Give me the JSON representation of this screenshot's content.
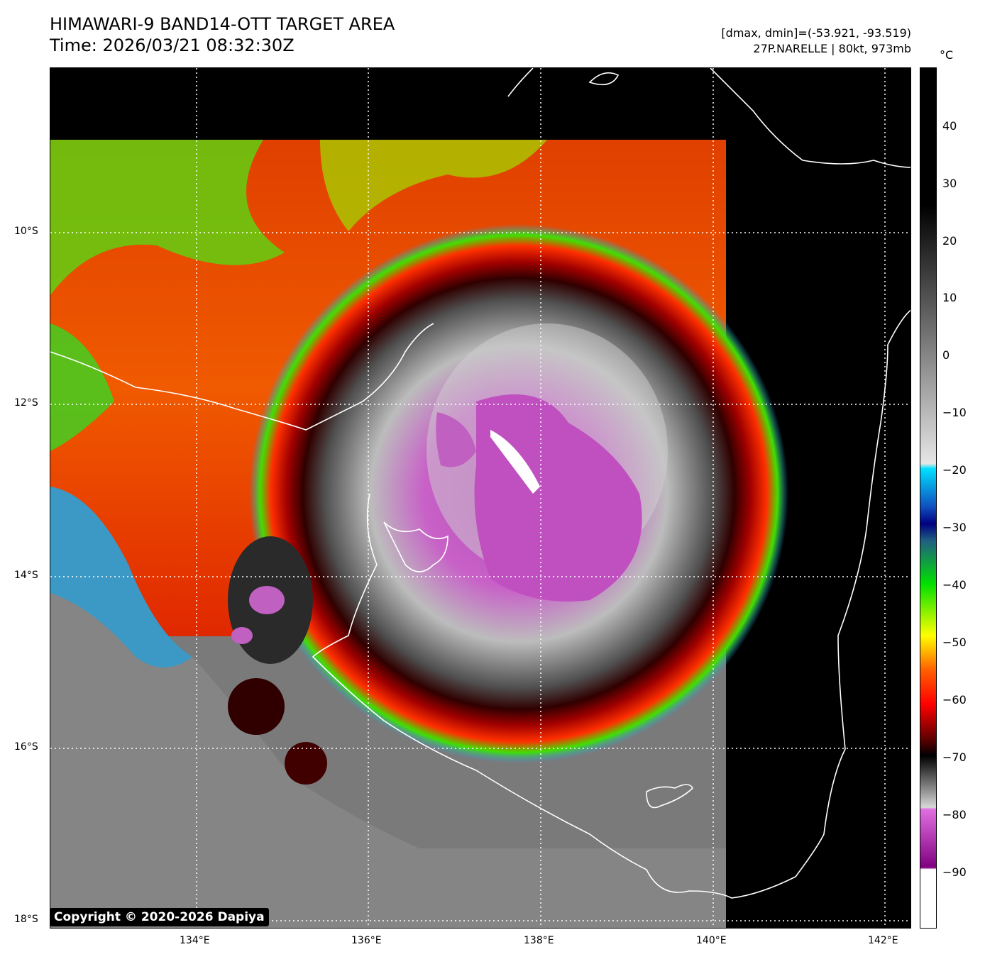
{
  "header": {
    "title_line1": "HIMAWARI-9 BAND14-OTT TARGET AREA",
    "title_line2": "Time: 2026/03/21 08:32:30Z",
    "info_line1": "[dmax, dmin]=(-53.921, -93.519)",
    "info_line2": "27P.NARELLE | 80kt, 973mb"
  },
  "colorbar": {
    "unit": "°C",
    "ticks": [
      "40",
      "30",
      "20",
      "10",
      "0",
      "−10",
      "−20",
      "−30",
      "−40",
      "−50",
      "−60",
      "−70",
      "−80",
      "−90"
    ],
    "colors": {
      "magenta": "#c040c0",
      "white": "#ffffff",
      "red": "#e02000",
      "green": "#20e000",
      "yellow": "#ffff00",
      "cyan": "#00e0ff",
      "darkblue": "#000090"
    }
  },
  "axes": {
    "lat_labels": [
      "10°S",
      "12°S",
      "14°S",
      "16°S",
      "18°S"
    ],
    "lon_labels": [
      "134°E",
      "136°E",
      "138°E",
      "140°E",
      "142°E"
    ]
  },
  "footer": {
    "copyright": "Copyright © 2020-2026 Dapiya"
  }
}
